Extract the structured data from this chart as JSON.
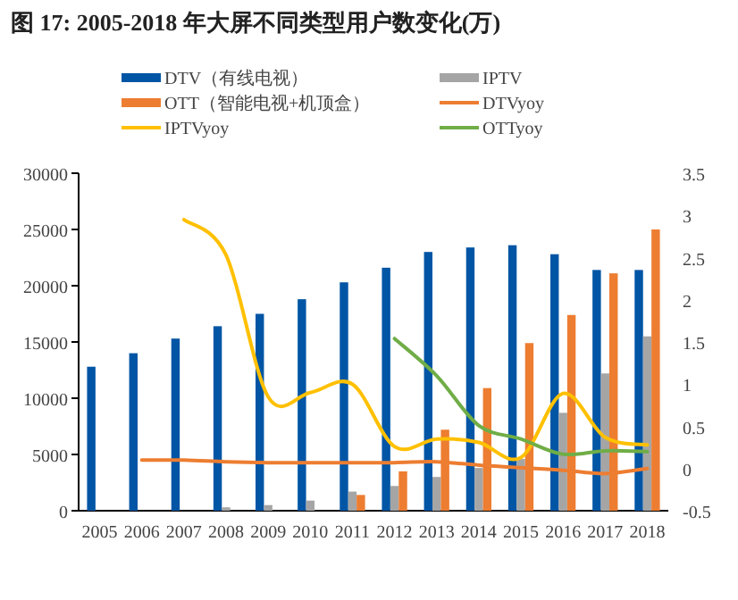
{
  "chart_data": {
    "type": "bar",
    "title": "图 17: 2005-2018 年大屏不同类型用户数变化(万)",
    "categories": [
      "2005",
      "2006",
      "2007",
      "2008",
      "2009",
      "2010",
      "2011",
      "2012",
      "2013",
      "2014",
      "2015",
      "2016",
      "2017",
      "2018"
    ],
    "series": [
      {
        "name": "DTV（有线电视）",
        "color": "#0055a5",
        "values": [
          12800,
          14000,
          15300,
          16400,
          17500,
          18800,
          20300,
          21600,
          23000,
          23400,
          23600,
          22800,
          21400,
          21400
        ]
      },
      {
        "name": "IPTV",
        "color": "#a5a5a5",
        "values": [
          null,
          null,
          null,
          300,
          500,
          900,
          1700,
          2200,
          3000,
          3800,
          4600,
          8700,
          12200,
          15500
        ]
      },
      {
        "name": "OTT（智能电视+机顶盒）",
        "color": "#ed7d31",
        "values": [
          null,
          null,
          null,
          null,
          null,
          null,
          1400,
          3500,
          7200,
          10900,
          14900,
          17400,
          21100,
          25000
        ]
      },
      {
        "name": "DTVyoy",
        "type": "line",
        "axis": "y2",
        "color": "#ed7d31",
        "values": [
          null,
          0.1,
          0.1,
          0.08,
          0.07,
          0.07,
          0.07,
          0.07,
          0.08,
          0.04,
          0.01,
          -0.02,
          -0.06,
          0.0
        ]
      },
      {
        "name": "IPTVyoy",
        "type": "line",
        "axis": "y2",
        "color": "#ffc000",
        "values": [
          null,
          null,
          2.95,
          2.53,
          0.85,
          0.9,
          1.0,
          0.26,
          0.35,
          0.31,
          0.13,
          0.89,
          0.37,
          0.28
        ]
      },
      {
        "name": "OTTyoy",
        "type": "line",
        "axis": "y2",
        "color": "#70ad47",
        "values": [
          null,
          null,
          null,
          null,
          null,
          null,
          null,
          1.54,
          1.1,
          0.51,
          0.35,
          0.17,
          0.21,
          0.2
        ]
      }
    ],
    "ylim": [
      0,
      30000
    ],
    "yticks": [
      0,
      5000,
      10000,
      15000,
      20000,
      25000,
      30000
    ],
    "y2lim": [
      -0.5,
      3.5
    ],
    "y2ticks": [
      -0.5,
      0,
      0.5,
      1,
      1.5,
      2,
      2.5,
      3,
      3.5
    ],
    "legend": "top"
  }
}
